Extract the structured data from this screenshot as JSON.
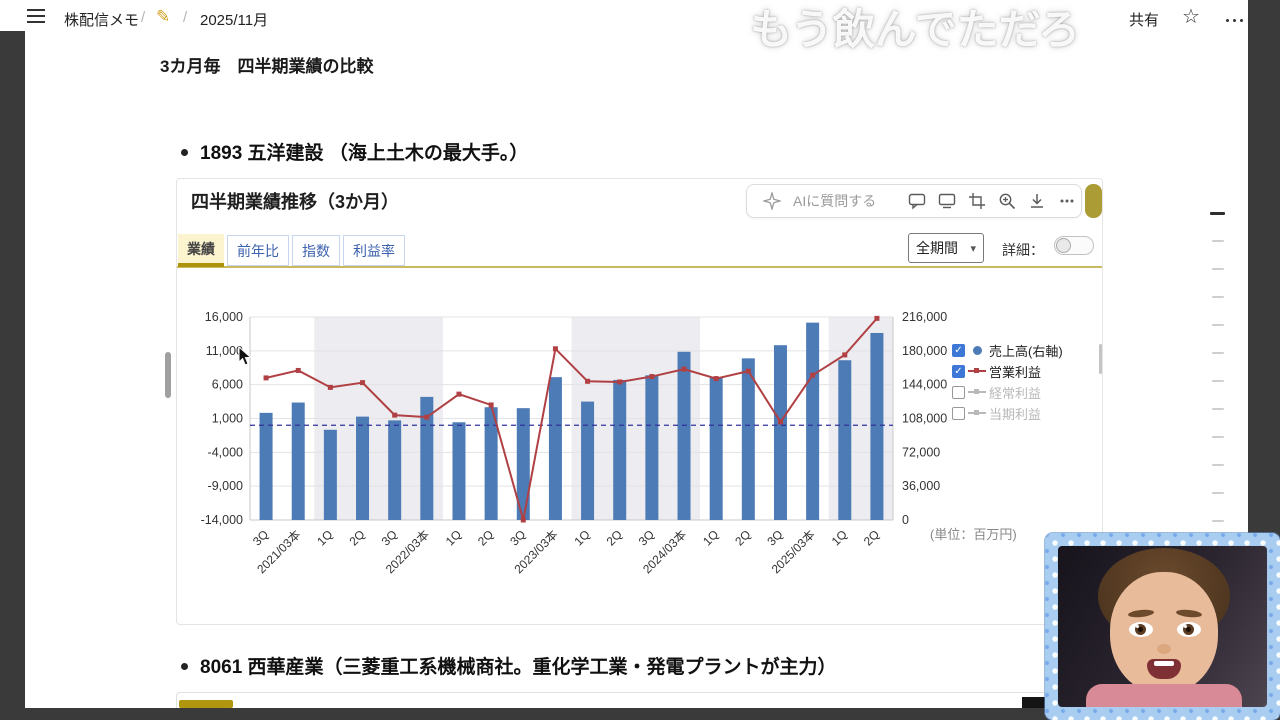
{
  "header": {
    "breadcrumb_root": "株配信メモ",
    "separator": "/",
    "breadcrumb_page": "2025/11月",
    "share_label": "共有"
  },
  "icons": {
    "pencil": "✎",
    "star": "☆",
    "caret": "▾",
    "check": "✓"
  },
  "watermark_text": "もう飲んでただろ",
  "page": {
    "title": "3カ月毎　四半期業績の比較",
    "bullets": [
      "1893 五洋建設 （海上土木の最大手。）",
      "8061 西華産業（三菱重工系機械商社。重化学工業・発電プラントが主力）"
    ]
  },
  "widget": {
    "title": "四半期業績推移（3か月）",
    "ai_button_label": "AIに質問する",
    "tabs": [
      {
        "label": "業績",
        "active": true
      },
      {
        "label": "前年比",
        "active": false
      },
      {
        "label": "指数",
        "active": false
      },
      {
        "label": "利益率",
        "active": false
      }
    ],
    "period_select_value": "全期間",
    "detail_toggle_label": "詳細：",
    "unit_label": "(単位：百万円)",
    "legend": [
      {
        "label": "売上高(右軸)",
        "checked": true,
        "marker": "circle",
        "color": "#4d7bb5"
      },
      {
        "label": "営業利益",
        "checked": true,
        "marker": "line",
        "color": "#b04043"
      },
      {
        "label": "経常利益",
        "checked": false,
        "marker": "line",
        "color": "#b9b9b9"
      },
      {
        "label": "当期利益",
        "checked": false,
        "marker": "line",
        "color": "#b9b9b9"
      }
    ]
  },
  "chart_data": {
    "type": "bar",
    "subtype": "bar+line dual axis",
    "title": "四半期業績推移（3か月）",
    "unit": "百万円",
    "categories": [
      "3Q",
      "2021/03本",
      "1Q",
      "2Q",
      "3Q",
      "2022/03本",
      "1Q",
      "2Q",
      "3Q",
      "2023/03本",
      "1Q",
      "2Q",
      "3Q",
      "2024/03本",
      "1Q",
      "2Q",
      "3Q",
      "2025/03本",
      "1Q",
      "2Q"
    ],
    "series": [
      {
        "name": "売上高(右軸)",
        "type": "bar",
        "axis": "right",
        "color": "#4d7bb5",
        "values": [
          114000,
          125000,
          96000,
          110000,
          106000,
          131000,
          104000,
          120000,
          119000,
          152000,
          126000,
          149000,
          154000,
          179000,
          152000,
          172000,
          186000,
          210000,
          170000,
          199000
        ]
      },
      {
        "name": "営業利益",
        "type": "line",
        "axis": "left",
        "color": "#b04043",
        "values": [
          7000,
          8100,
          5600,
          6300,
          1500,
          1200,
          4600,
          3000,
          -14000,
          11300,
          6500,
          6400,
          7200,
          8300,
          6900,
          8000,
          500,
          7400,
          10400,
          15800
        ]
      },
      {
        "name": "経常利益",
        "type": "line",
        "axis": "left",
        "color": "#b9b9b9",
        "enabled": false,
        "values": []
      },
      {
        "name": "当期利益",
        "type": "line",
        "axis": "left",
        "color": "#b9b9b9",
        "enabled": false,
        "values": []
      }
    ],
    "left_axis": {
      "min": -14000,
      "max": 16000,
      "ticks": [
        16000,
        11000,
        6000,
        1000,
        -4000,
        -9000,
        -14000
      ]
    },
    "right_axis": {
      "min": 0,
      "max": 216000,
      "ticks": [
        216000,
        180000,
        144000,
        108000,
        72000,
        36000,
        0
      ]
    },
    "zero_line_left_axis": 0,
    "shaded_bands": [
      [
        2,
        5
      ],
      [
        10,
        13
      ],
      [
        18,
        19
      ]
    ],
    "grid": true,
    "legend_position": "right"
  },
  "colors": {
    "bar": "#4d7bb5",
    "line": "#b04043",
    "accent_yellow": "#ab9c35",
    "tab_active_underline": "#ad930b",
    "zero_line": "#31319b"
  }
}
